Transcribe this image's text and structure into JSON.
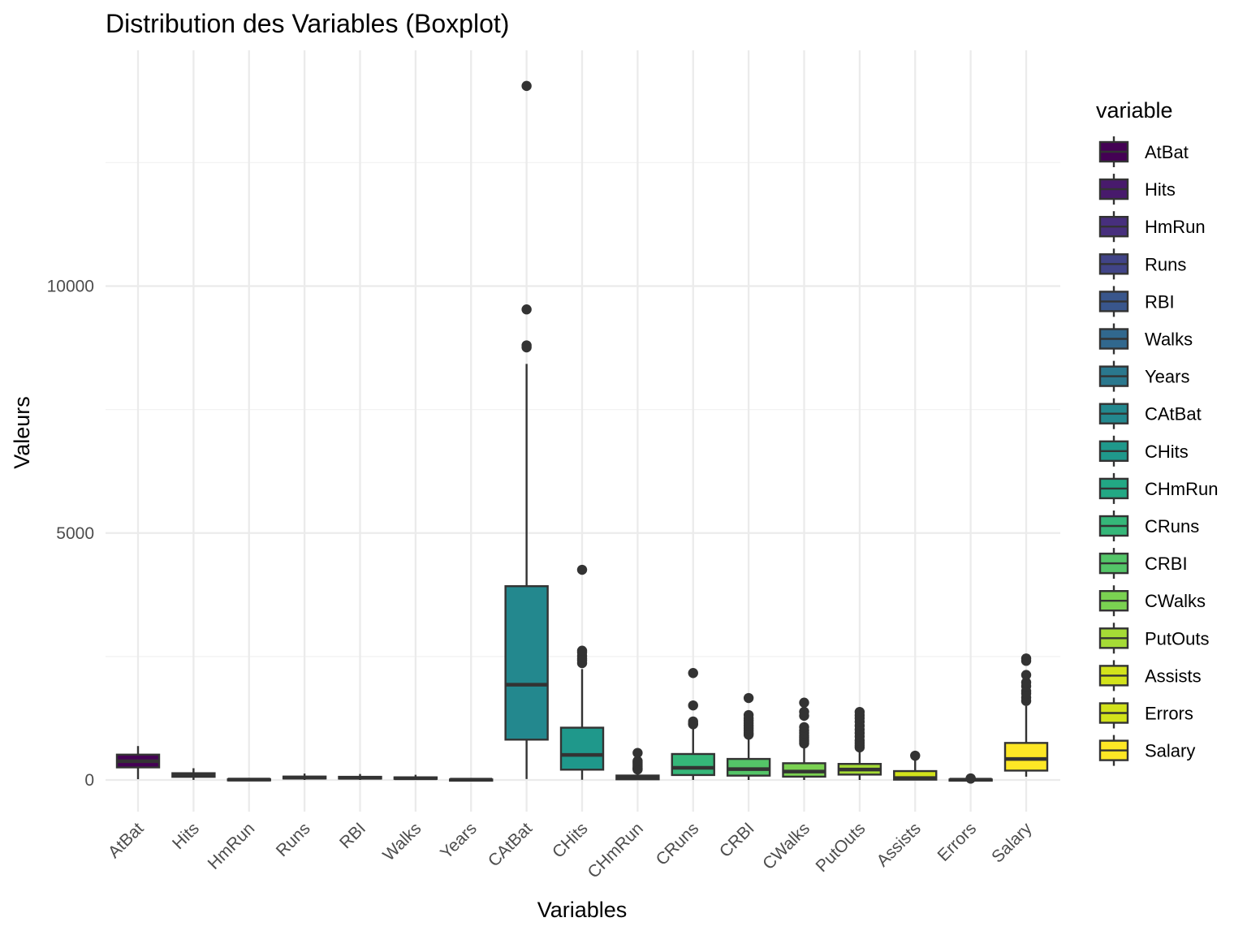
{
  "chart_data": {
    "type": "boxplot",
    "title": "Distribution des Variables (Boxplot)",
    "xlabel": "Variables",
    "ylabel": "Valeurs",
    "ylim": [
      -450,
      14300
    ],
    "yticks": [
      0,
      5000,
      10000
    ],
    "ytick_labels": [
      "0",
      "5000",
      "10000"
    ],
    "grid": true,
    "legend": {
      "title": "variable",
      "position": "right"
    },
    "categories": [
      "AtBat",
      "Hits",
      "HmRun",
      "Runs",
      "RBI",
      "Walks",
      "Years",
      "CAtBat",
      "CHits",
      "CHmRun",
      "CRuns",
      "CRBI",
      "CWalks",
      "PutOuts",
      "Assists",
      "Errors",
      "Salary"
    ],
    "colors": [
      "#440154",
      "#481A6C",
      "#472F7D",
      "#414487",
      "#39568C",
      "#31688E",
      "#2A788E",
      "#23888E",
      "#1F988B",
      "#22A884",
      "#35B779",
      "#54C568",
      "#7AD151",
      "#A5DB36",
      "#D2E21B",
      "#D2E21B",
      "#FDE725"
    ],
    "series": [
      {
        "name": "AtBat",
        "min": 16,
        "q1": 255,
        "median": 380,
        "q3": 513,
        "max": 687,
        "outliers": []
      },
      {
        "name": "Hits",
        "min": 1,
        "q1": 64,
        "median": 96,
        "q3": 137,
        "max": 238,
        "outliers": []
      },
      {
        "name": "HmRun",
        "min": 0,
        "q1": 4,
        "median": 8,
        "q3": 16,
        "max": 40,
        "outliers": []
      },
      {
        "name": "Runs",
        "min": 0,
        "q1": 30,
        "median": 48,
        "q3": 69,
        "max": 130,
        "outliers": []
      },
      {
        "name": "RBI",
        "min": 0,
        "q1": 28,
        "median": 44,
        "q3": 64,
        "max": 121,
        "outliers": []
      },
      {
        "name": "Walks",
        "min": 0,
        "q1": 22,
        "median": 35,
        "q3": 53,
        "max": 105,
        "outliers": []
      },
      {
        "name": "Years",
        "min": 1,
        "q1": 4,
        "median": 6,
        "q3": 11,
        "max": 24,
        "outliers": []
      },
      {
        "name": "CAtBat",
        "min": 19,
        "q1": 817,
        "median": 1928,
        "q3": 3924,
        "max": 8424,
        "outliers": [
          8759,
          8800,
          9528,
          14053
        ]
      },
      {
        "name": "CHits",
        "min": 4,
        "q1": 209,
        "median": 508,
        "q3": 1059,
        "max": 2246,
        "outliers": [
          2366,
          2419,
          2457,
          2510,
          2583,
          2617,
          4256
        ]
      },
      {
        "name": "CHmRun",
        "min": 0,
        "q1": 14,
        "median": 37,
        "q3": 90,
        "max": 194,
        "outliers": [
          211,
          225,
          237,
          263,
          296,
          331,
          357,
          384,
          548
        ]
      },
      {
        "name": "CRuns",
        "min": 1,
        "q1": 100,
        "median": 247,
        "q3": 526,
        "max": 1070,
        "outliers": [
          1128,
          1140,
          1185,
          1509,
          2165
        ]
      },
      {
        "name": "CRBI",
        "min": 0,
        "q1": 88,
        "median": 220,
        "q3": 426,
        "max": 875,
        "outliers": [
          917,
          950,
          1000,
          1050,
          1100,
          1150,
          1200,
          1250,
          1314,
          1659
        ]
      },
      {
        "name": "CWalks",
        "min": 0,
        "q1": 67,
        "median": 170,
        "q3": 339,
        "max": 708,
        "outliers": [
          740,
          780,
          820,
          860,
          900,
          950,
          1000,
          1070,
          1300,
          1380,
          1566
        ]
      },
      {
        "name": "PutOuts",
        "min": 0,
        "q1": 109,
        "median": 212,
        "q3": 325,
        "max": 630,
        "outliers": [
          660,
          700,
          750,
          800,
          880,
          950,
          1020,
          1100,
          1180,
          1250,
          1310,
          1378
        ]
      },
      {
        "name": "Assists",
        "min": 0,
        "q1": 7,
        "median": 40,
        "q3": 180,
        "max": 450,
        "outliers": [
          492
        ]
      },
      {
        "name": "Errors",
        "min": 0,
        "q1": 3,
        "median": 6,
        "q3": 11,
        "max": 26,
        "outliers": [
          28,
          29,
          32
        ]
      },
      {
        "name": "Salary",
        "min": 67,
        "q1": 190,
        "median": 425,
        "q3": 750,
        "max": 1500,
        "outliers": [
          1600,
          1670,
          1750,
          1800,
          1900,
          1975,
          2127,
          2412,
          2460
        ]
      }
    ]
  }
}
